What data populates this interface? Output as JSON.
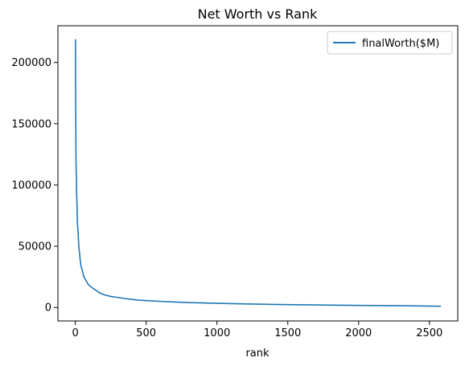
{
  "chart_data": {
    "type": "line",
    "title": "Net Worth vs Rank",
    "xlabel": "rank",
    "ylabel": "",
    "xlim": [
      -123,
      2700
    ],
    "ylim": [
      -11000,
      230000
    ],
    "xticks": [
      0,
      500,
      1000,
      1500,
      2000,
      2500
    ],
    "yticks": [
      0,
      50000,
      100000,
      150000,
      200000
    ],
    "grid": false,
    "legend_position": "top-right",
    "series": [
      {
        "name": "finalWorth($M)",
        "color": "#1f77b4",
        "points": [
          [
            1,
            219000
          ],
          [
            2,
            171000
          ],
          [
            3,
            158000
          ],
          [
            4,
            129000
          ],
          [
            5,
            118000
          ],
          [
            6,
            111000
          ],
          [
            7,
            107000
          ],
          [
            8,
            106000
          ],
          [
            9,
            91400
          ],
          [
            10,
            90700
          ],
          [
            12,
            82000
          ],
          [
            15,
            67000
          ],
          [
            18,
            65000
          ],
          [
            20,
            60000
          ],
          [
            25,
            49000
          ],
          [
            30,
            44000
          ],
          [
            35,
            38000
          ],
          [
            40,
            34000
          ],
          [
            50,
            30000
          ],
          [
            60,
            25000
          ],
          [
            70,
            23000
          ],
          [
            80,
            21000
          ],
          [
            90,
            19000
          ],
          [
            100,
            17800
          ],
          [
            120,
            16000
          ],
          [
            140,
            14500
          ],
          [
            160,
            12700
          ],
          [
            180,
            11500
          ],
          [
            200,
            10500
          ],
          [
            250,
            9000
          ],
          [
            300,
            8200
          ],
          [
            350,
            7300
          ],
          [
            400,
            6600
          ],
          [
            450,
            6000
          ],
          [
            500,
            5600
          ],
          [
            600,
            5000
          ],
          [
            700,
            4500
          ],
          [
            800,
            4000
          ],
          [
            900,
            3700
          ],
          [
            1000,
            3400
          ],
          [
            1200,
            2900
          ],
          [
            1400,
            2500
          ],
          [
            1600,
            2200
          ],
          [
            1800,
            1900
          ],
          [
            2000,
            1700
          ],
          [
            2200,
            1500
          ],
          [
            2400,
            1300
          ],
          [
            2580,
            1000
          ]
        ]
      }
    ]
  }
}
